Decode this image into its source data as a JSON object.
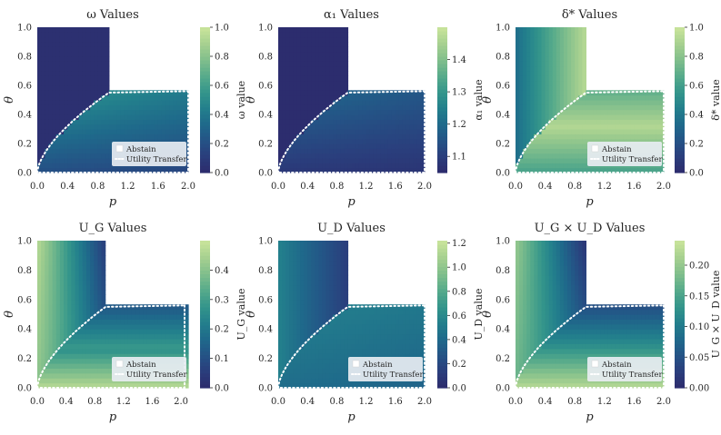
{
  "colors": {
    "colormap": [
      "#2c2d6e",
      "#2a3f7d",
      "#245486",
      "#1f6a8b",
      "#23808c",
      "#34958b",
      "#56aa8b",
      "#7ebd8c",
      "#a4cf8f",
      "#c6e29a"
    ],
    "boundary": "#ffffff",
    "legend_bg": "#e8edf2",
    "legend_text": "#262626"
  },
  "chart_data": [
    {
      "type": "heatmap",
      "id": "omega",
      "title": "ω Values",
      "xlabel": "p",
      "ylabel": "θ",
      "xlim": [
        0.0,
        2.0
      ],
      "ylim": [
        0.0,
        1.0
      ],
      "xticks": [
        "0.0",
        "0.4",
        "0.8",
        "1.2",
        "1.6",
        "2.0"
      ],
      "yticks": [
        "0.0",
        "0.2",
        "0.4",
        "0.6",
        "0.8",
        "1.0"
      ],
      "colorbar": {
        "label": "ω value",
        "range": [
          0.0,
          1.0
        ],
        "ticks": [
          "0.0",
          "0.2",
          "0.4",
          "0.6",
          "0.8",
          "1.0"
        ]
      },
      "legend": [
        "Abstain",
        "Utility Transfer"
      ],
      "region_value_range": [
        0.0,
        0.55
      ],
      "legend_offset": 0
    },
    {
      "type": "heatmap",
      "id": "alpha1",
      "title": "α₁ Values",
      "xlabel": "p",
      "ylabel": "θ",
      "xlim": [
        0.0,
        2.0
      ],
      "ylim": [
        0.0,
        1.0
      ],
      "xticks": [
        "0.0",
        "0.4",
        "0.8",
        "1.2",
        "1.6",
        "2.0"
      ],
      "yticks": [
        "0.0",
        "0.2",
        "0.4",
        "0.6",
        "0.8",
        "1.0"
      ],
      "colorbar": {
        "label": "α₁ value",
        "range": [
          1.05,
          1.5
        ],
        "ticks": [
          "1.1",
          "1.2",
          "1.3",
          "1.4"
        ]
      },
      "legend": [],
      "region_value_range": [
        1.05,
        1.2
      ],
      "legend_offset": 0
    },
    {
      "type": "heatmap",
      "id": "delta",
      "title": "δ* Values",
      "xlabel": "p",
      "ylabel": "θ",
      "xlim": [
        0.0,
        2.0
      ],
      "ylim": [
        0.0,
        1.0
      ],
      "xticks": [
        "0.0",
        "0.4",
        "0.8",
        "1.2",
        "1.6",
        "2.0"
      ],
      "yticks": [
        "0.0",
        "0.2",
        "0.4",
        "0.6",
        "0.8",
        "1.0"
      ],
      "colorbar": {
        "label": "δ* value",
        "range": [
          0.0,
          1.0
        ],
        "ticks": [
          "0.0",
          "0.2",
          "0.4",
          "0.6",
          "0.8",
          "1.0"
        ]
      },
      "legend": [
        "Abstain",
        "Utility Transfer"
      ],
      "region_value_range": [
        0.55,
        0.95
      ],
      "legend_offset": 0
    },
    {
      "type": "heatmap",
      "id": "ug",
      "title": "U_G Values",
      "xlabel": "p",
      "ylabel": "θ",
      "xlim": [
        0.0,
        2.1
      ],
      "ylim": [
        0.0,
        1.0
      ],
      "xticks": [
        "0.0",
        "0.4",
        "0.8",
        "1.2",
        "1.6",
        "2.0"
      ],
      "yticks": [
        "0.0",
        "0.2",
        "0.4",
        "0.6",
        "0.8",
        "1.0"
      ],
      "colorbar": {
        "label": "U_G value",
        "range": [
          0.0,
          0.5
        ],
        "ticks": [
          "0.0",
          "0.1",
          "0.2",
          "0.3",
          "0.4"
        ]
      },
      "legend": [
        "Abstain",
        "Utility Transfer"
      ],
      "region_value_range": [
        0.12,
        0.45
      ],
      "legend_offset": 0
    },
    {
      "type": "heatmap",
      "id": "ud",
      "title": "U_D Values",
      "xlabel": "p",
      "ylabel": "θ",
      "xlim": [
        0.0,
        2.0
      ],
      "ylim": [
        0.0,
        1.0
      ],
      "xticks": [
        "0.0",
        "0.4",
        "0.8",
        "1.2",
        "1.6",
        "2.0"
      ],
      "yticks": [
        "0.0",
        "0.2",
        "0.4",
        "0.6",
        "0.8",
        "1.0"
      ],
      "colorbar": {
        "label": "U_D value",
        "range": [
          0.0,
          1.22
        ],
        "ticks": [
          "0.0",
          "0.2",
          "0.4",
          "0.6",
          "0.8",
          "1.0",
          "1.2"
        ]
      },
      "legend": [
        "Abstain",
        "Utility Transfer"
      ],
      "region_value_range": [
        0.25,
        0.6
      ],
      "legend_offset": 0
    },
    {
      "type": "heatmap",
      "id": "ugud",
      "title": "U_G × U_D Values",
      "xlabel": "p",
      "ylabel": "θ",
      "xlim": [
        0.0,
        2.0
      ],
      "ylim": [
        0.0,
        1.0
      ],
      "xticks": [
        "0.0",
        "0.4",
        "0.8",
        "1.2",
        "1.6",
        "2.0"
      ],
      "yticks": [
        "0.0",
        "0.2",
        "0.4",
        "0.6",
        "0.8",
        "1.0"
      ],
      "colorbar": {
        "label": "U_G × U_D value",
        "range": [
          0.0,
          0.24
        ],
        "ticks": [
          "0.00",
          "0.05",
          "0.10",
          "0.15",
          "0.20"
        ]
      },
      "legend": [
        "Abstain",
        "Utility Transfer"
      ],
      "region_value_range": [
        0.02,
        0.12
      ],
      "legend_offset": 0
    }
  ]
}
